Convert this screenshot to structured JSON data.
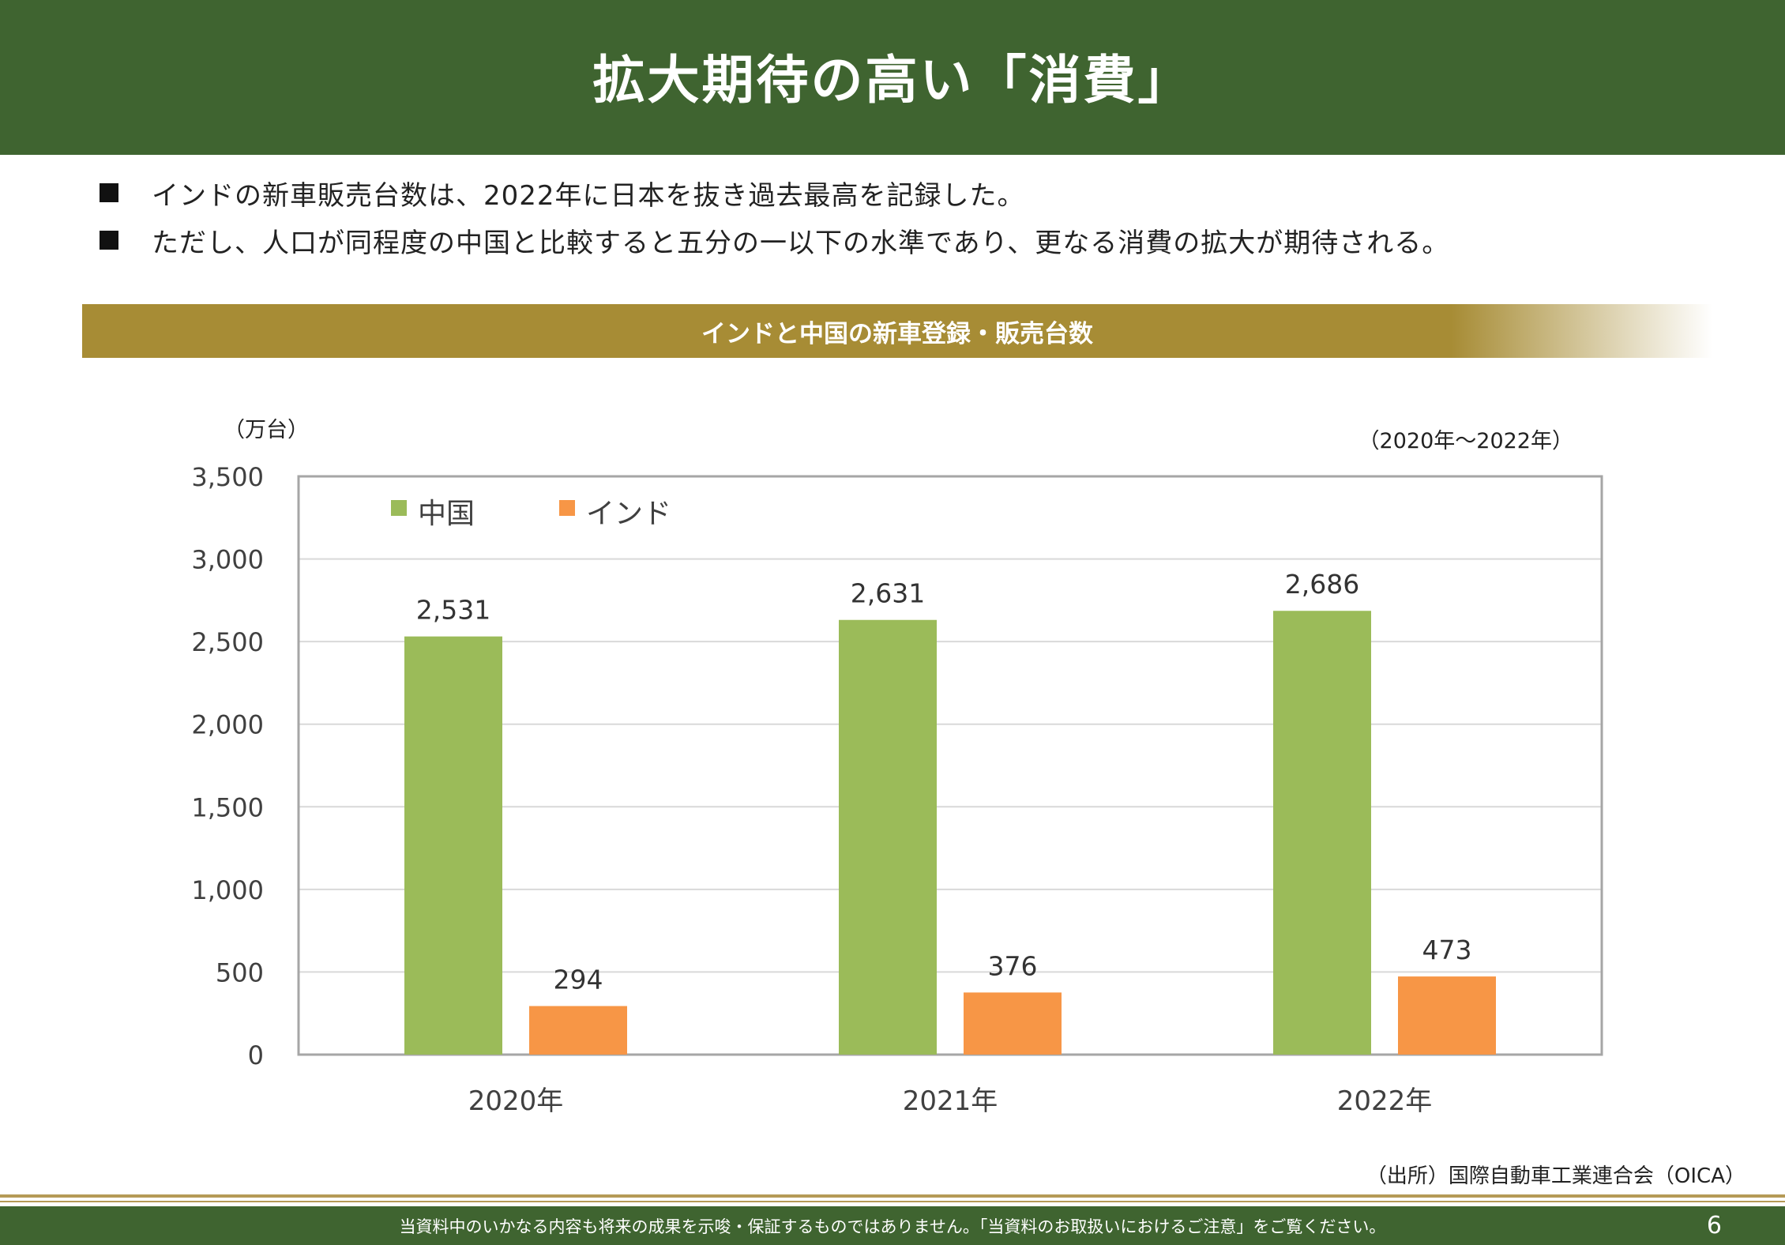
{
  "header": {
    "title": "拡大期待の高い「消費」"
  },
  "bullets": [
    "インドの新車販売台数は、2022年に日本を抜き過去最高を記録した。",
    "ただし、人口が同程度の中国と比較すると五分の一以下の水準であり、更なる消費の拡大が期待される。"
  ],
  "section": {
    "title": "インドと中国の新車登録・販売台数"
  },
  "labels": {
    "unit": "（万台）",
    "period": "（2020年～2022年）"
  },
  "source": "（出所）国際自動車工業連合会（OICA）",
  "footer": {
    "disclaimer": "当資料中のいかなる内容も将来の成果を示唆・保証するものではありません。「当資料のお取扱いにおけるご注意」をご覧ください。",
    "page": "6"
  },
  "colors": {
    "header_bg": "#3f6430",
    "band": "#a78c35",
    "china": "#9bbb59",
    "india": "#f79646"
  },
  "chart_data": {
    "type": "bar",
    "categories": [
      "2020年",
      "2021年",
      "2022年"
    ],
    "series": [
      {
        "name": "中国",
        "values": [
          2531,
          2631,
          2686
        ],
        "labels": [
          "2,531",
          "2,631",
          "2,686"
        ],
        "color": "#9bbb59"
      },
      {
        "name": "インド",
        "values": [
          294,
          376,
          473
        ],
        "labels": [
          "294",
          "376",
          "473"
        ],
        "color": "#f79646"
      }
    ],
    "yticks": [
      "0",
      "500",
      "1,000",
      "1,500",
      "2,000",
      "2,500",
      "3,000",
      "3,500"
    ],
    "ylim": [
      0,
      3500
    ],
    "grid": true,
    "legend_position": "top-left"
  }
}
